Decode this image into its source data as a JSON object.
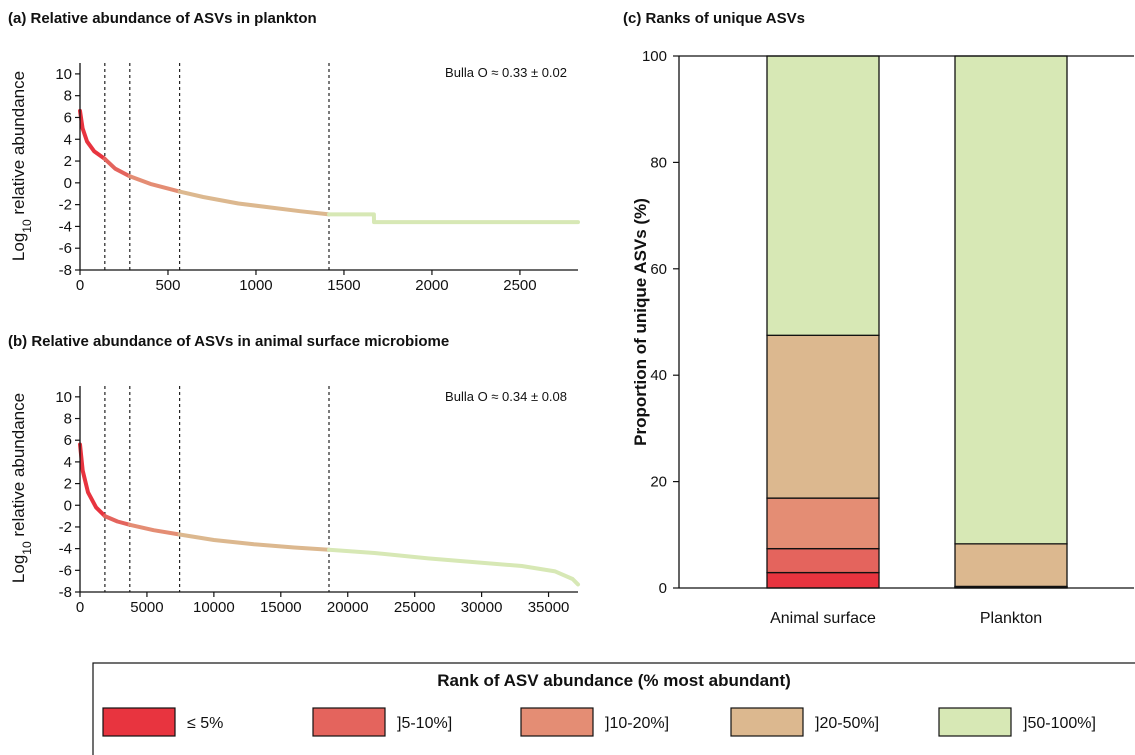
{
  "colors": {
    "le5": "#e8343f",
    "r5_10": "#e4645d",
    "r10_20": "#e48d74",
    "r20_50": "#dcb88f",
    "r50_100": "#d7e8b5"
  },
  "legend": {
    "title": "Rank of ASV abundance (% most abundant)",
    "items": [
      {
        "label": "≤ 5%",
        "key": "le5"
      },
      {
        "label": "]5-10%]",
        "key": "r5_10"
      },
      {
        "label": "]10-20%]",
        "key": "r10_20"
      },
      {
        "label": "]20-50%]",
        "key": "r20_50"
      },
      {
        "label": "]50-100%]",
        "key": "r50_100"
      }
    ]
  },
  "chart_data": [
    {
      "id": "a",
      "type": "line",
      "title": "(a) Relative abundance of ASVs in plankton",
      "ylabel_prefix": "Log",
      "ylabel_sub": "10",
      "ylabel_suffix": " relative abundance",
      "annotation": "Bulla O ≈ 0.33 ± 0.02",
      "xlim": [
        0,
        2830
      ],
      "ylim": [
        -8,
        11
      ],
      "xticks": [
        0,
        500,
        1000,
        1500,
        2000,
        2500
      ],
      "yticks": [
        -8,
        -6,
        -4,
        -2,
        0,
        2,
        4,
        6,
        8,
        10
      ],
      "rank_boundaries": [
        141,
        283,
        566,
        1415
      ],
      "curve": [
        [
          0,
          6.6
        ],
        [
          15,
          5.0
        ],
        [
          40,
          3.8
        ],
        [
          80,
          2.9
        ],
        [
          141,
          2.2
        ],
        [
          200,
          1.3
        ],
        [
          283,
          0.6
        ],
        [
          400,
          -0.1
        ],
        [
          566,
          -0.8
        ],
        [
          700,
          -1.3
        ],
        [
          900,
          -1.9
        ],
        [
          1100,
          -2.3
        ],
        [
          1250,
          -2.6
        ],
        [
          1415,
          -2.9
        ],
        [
          1670,
          -2.9
        ],
        [
          1671,
          -3.6
        ],
        [
          2830,
          -3.6
        ]
      ]
    },
    {
      "id": "b",
      "type": "line",
      "title": "(b) Relative abundance of ASVs in animal surface microbiome",
      "ylabel_prefix": "Log",
      "ylabel_sub": "10",
      "ylabel_suffix": " relative abundance",
      "annotation": "Bulla O ≈ 0.34 ± 0.08",
      "xlim": [
        0,
        37200
      ],
      "ylim": [
        -8,
        11
      ],
      "xticks": [
        0,
        5000,
        10000,
        15000,
        20000,
        25000,
        30000,
        35000
      ],
      "yticks": [
        -8,
        -6,
        -4,
        -2,
        0,
        2,
        4,
        6,
        8,
        10
      ],
      "rank_boundaries": [
        1860,
        3720,
        7440,
        18600
      ],
      "curve": [
        [
          0,
          5.6
        ],
        [
          200,
          3.2
        ],
        [
          600,
          1.2
        ],
        [
          1200,
          -0.2
        ],
        [
          1860,
          -1.0
        ],
        [
          2800,
          -1.5
        ],
        [
          3720,
          -1.8
        ],
        [
          5500,
          -2.3
        ],
        [
          7440,
          -2.7
        ],
        [
          10000,
          -3.2
        ],
        [
          13000,
          -3.6
        ],
        [
          16000,
          -3.9
        ],
        [
          18600,
          -4.1
        ],
        [
          22000,
          -4.4
        ],
        [
          26000,
          -4.9
        ],
        [
          30000,
          -5.3
        ],
        [
          33000,
          -5.6
        ],
        [
          35500,
          -6.1
        ],
        [
          36800,
          -6.8
        ],
        [
          37200,
          -7.3
        ]
      ]
    },
    {
      "id": "c",
      "type": "bar",
      "stacked": true,
      "title": "(c) Ranks of unique ASVs",
      "ylabel": "Proportion of unique ASVs (%)",
      "ylim": [
        0,
        100
      ],
      "yticks": [
        0,
        20,
        40,
        60,
        80,
        100
      ],
      "categories": [
        "Animal surface",
        "Plankton"
      ],
      "series": [
        {
          "key": "le5",
          "values": [
            2.9,
            0.1
          ]
        },
        {
          "key": "r5_10",
          "values": [
            4.5,
            0.1
          ]
        },
        {
          "key": "r10_20",
          "values": [
            9.5,
            0.1
          ]
        },
        {
          "key": "r20_50",
          "values": [
            30.6,
            8.0
          ]
        },
        {
          "key": "r50_100",
          "values": [
            52.5,
            91.7
          ]
        }
      ]
    }
  ]
}
